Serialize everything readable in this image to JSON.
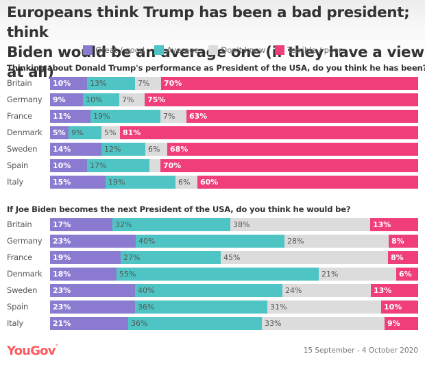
{
  "header": {
    "title_line1": "Europeans think Trump has been a bad president; think",
    "title_line2": "Biden would be an average one (if they have a view at all)"
  },
  "legend": [
    {
      "label": "Great / good",
      "color": "#8a7bd1"
    },
    {
      "label": "Average",
      "color": "#4ec5c4"
    },
    {
      "label": "Don't know",
      "color": "#dcdcdc"
    },
    {
      "label": "Terrible / poor",
      "color": "#f03e7a"
    }
  ],
  "footer": {
    "brand": "YouGov",
    "date_range": "15 September - 4 October 2020"
  },
  "chart_data": [
    {
      "type": "bar",
      "orientation": "horizontal-stacked",
      "title": "Thinking about Donald Trump's performance as President of the USA, do you think he has been?",
      "categories": [
        "Britain",
        "Germany",
        "France",
        "Denmark",
        "Sweden",
        "Spain",
        "Italy"
      ],
      "series": [
        {
          "name": "Great / good",
          "color": "#8a7bd1",
          "values": [
            10,
            9,
            11,
            5,
            14,
            10,
            15
          ],
          "labels": [
            "10%",
            "9%",
            "11%",
            "5%",
            "14%",
            "10%",
            "15%"
          ]
        },
        {
          "name": "Average",
          "color": "#4ec5c4",
          "values": [
            13,
            10,
            19,
            9,
            12,
            17,
            19
          ],
          "labels": [
            "13%",
            "10%",
            "19%",
            "9%",
            "12%",
            "17%",
            "19%"
          ]
        },
        {
          "name": "Don't know",
          "color": "#dcdcdc",
          "values": [
            7,
            7,
            7,
            5,
            6,
            3,
            6
          ],
          "labels": [
            "7%",
            "7%",
            "7%",
            "5%",
            "6%",
            "",
            "6%"
          ]
        },
        {
          "name": "Terrible / poor",
          "color": "#f03e7a",
          "values": [
            70,
            75,
            63,
            81,
            68,
            70,
            60
          ],
          "labels": [
            "70%",
            "75%",
            "63%",
            "81%",
            "68%",
            "70%",
            "60%"
          ]
        }
      ],
      "unit": "%",
      "legend": "top-center"
    },
    {
      "type": "bar",
      "orientation": "horizontal-stacked",
      "title": "If Joe Biden becomes the next President of the USA, do you think he would be?",
      "categories": [
        "Britain",
        "Germany",
        "France",
        "Denmark",
        "Sweden",
        "Spain",
        "Italy"
      ],
      "series": [
        {
          "name": "Great / good",
          "color": "#8a7bd1",
          "values": [
            17,
            23,
            19,
            18,
            23,
            23,
            21
          ],
          "labels": [
            "17%",
            "23%",
            "19%",
            "18%",
            "23%",
            "23%",
            "21%"
          ]
        },
        {
          "name": "Average",
          "color": "#4ec5c4",
          "values": [
            32,
            40,
            27,
            55,
            40,
            36,
            36
          ],
          "labels": [
            "32%",
            "40%",
            "27%",
            "55%",
            "40%",
            "36%",
            "36%"
          ]
        },
        {
          "name": "Don't know",
          "color": "#dcdcdc",
          "values": [
            38,
            28,
            45,
            21,
            24,
            31,
            33
          ],
          "labels": [
            "38%",
            "28%",
            "45%",
            "21%",
            "24%",
            "31%",
            "33%"
          ]
        },
        {
          "name": "Terrible / poor",
          "color": "#f03e7a",
          "values": [
            13,
            8,
            8,
            6,
            13,
            10,
            9
          ],
          "labels": [
            "13%",
            "8%",
            "8%",
            "6%",
            "13%",
            "10%",
            "9%"
          ]
        }
      ],
      "unit": "%",
      "legend": "top-center"
    }
  ]
}
